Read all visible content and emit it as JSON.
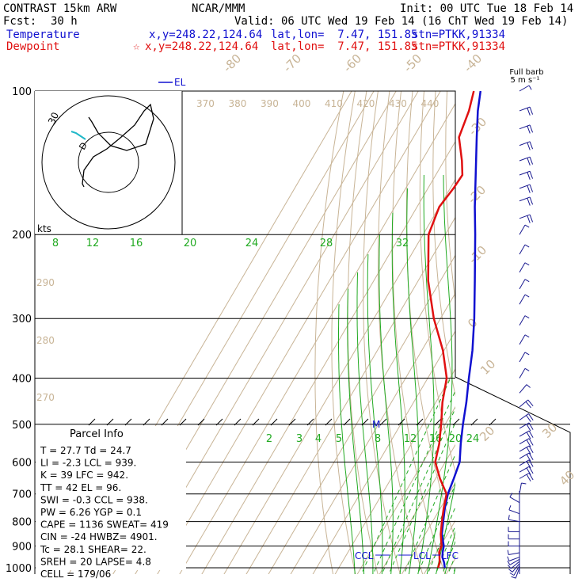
{
  "header": {
    "model": "CONTRAST 15km ARW",
    "center": "NCAR/MMM",
    "init": "Init: 00 UTC Tue 18 Feb 14",
    "fcst_label": "Fcst:",
    "fcst_value": "30 h",
    "valid": "Valid: 06 UTC Wed 19 Feb 14 (16 ChT Wed 19 Feb 14)",
    "temp_label": "Temperature",
    "temp_xy": "x,y=248.22,124.64",
    "temp_latlon": "lat,lon=  7.47, 151.85",
    "temp_stn": "stn=PTKK,91334",
    "dew_label": "Dewpoint",
    "dew_star": "☆",
    "dew_xy": "x,y=248.22,124.64",
    "dew_latlon": "lat,lon=  7.47, 151.85",
    "dew_stn": "stn=PTKK,91334"
  },
  "colors": {
    "temperature": "#1010d0",
    "dewpoint": "#e01010",
    "isotherm": "#c8b496",
    "mixing_ratio": "#22aa22",
    "wind": "#1a1a90"
  },
  "barb_legend": [
    "Full barb",
    "5 m s⁻¹"
  ],
  "hodograph": {
    "kts_label": "kts",
    "ring_label": "30"
  },
  "parcel_info": {
    "title": "Parcel Info",
    "rows": [
      "T   =   27.7  Td =  24.7",
      "LI  =   -2.3  LCL =  939.",
      "K   =     39  LFC =  942.",
      "TT  =     42  EL  =   96.",
      "SWI =   -0.3  CCL =  938.",
      "PW  =   6.26  YGP =   0.1",
      "CAPE =  1136  SWEAT=  419",
      "CIN =    -24  HWBZ= 4901.",
      "Tc  =   28.1  SHEAR=  22.",
      "SREH =    20  LAPSE=  4.8",
      "CELL = 179/06"
    ]
  },
  "levels_labels": {
    "el": "EL",
    "m": "M",
    "ccl": "CCL",
    "lcl": "LCL",
    "lfc": "LFC"
  },
  "chart_data": {
    "type": "line",
    "diagram": "skew-T log-p",
    "ylabel": "",
    "pressure_ticks": [
      100,
      200,
      300,
      400,
      500,
      600,
      700,
      800,
      900,
      1000
    ],
    "isotherm_labels": [
      "-80",
      "-70",
      "-60",
      "-50",
      "-40",
      "-30",
      "-20",
      "-10",
      "0",
      "10",
      "20",
      "30",
      "40"
    ],
    "theta_labels_top": [
      "370",
      "380",
      "390",
      "400",
      "410",
      "420",
      "430",
      "440"
    ],
    "theta_labels_left": [
      "290",
      "280",
      "270"
    ],
    "mixing_ratio_labels_upper": [
      "8",
      "12",
      "16",
      "20",
      "24",
      "28",
      "32"
    ],
    "mixing_ratio_labels_lower": [
      "2",
      "3",
      "4",
      "5",
      "8",
      "12",
      "16",
      "20",
      "24"
    ],
    "series": [
      {
        "name": "Temperature",
        "points": [
          [
            1000,
            27.7
          ],
          [
            975,
            26.0
          ],
          [
            950,
            23.8
          ],
          [
            925,
            22.5
          ],
          [
            900,
            21.5
          ],
          [
            850,
            17.5
          ],
          [
            800,
            14.8
          ],
          [
            750,
            12.0
          ],
          [
            700,
            9.6
          ],
          [
            650,
            8.2
          ],
          [
            600,
            6.5
          ],
          [
            550,
            2.2
          ],
          [
            500,
            -2.0
          ],
          [
            450,
            -6.2
          ],
          [
            400,
            -11.5
          ],
          [
            350,
            -17.2
          ],
          [
            300,
            -24.8
          ],
          [
            250,
            -34.5
          ],
          [
            200,
            -46.5
          ],
          [
            175,
            -54.0
          ],
          [
            150,
            -62.0
          ],
          [
            125,
            -71.5
          ],
          [
            110,
            -78.0
          ],
          [
            100,
            -82.0
          ]
        ]
      },
      {
        "name": "Dewpoint",
        "points": [
          [
            1000,
            24.7
          ],
          [
            975,
            24.0
          ],
          [
            950,
            22.5
          ],
          [
            925,
            21.0
          ],
          [
            900,
            20.5
          ],
          [
            850,
            17.0
          ],
          [
            800,
            14.2
          ],
          [
            750,
            11.5
          ],
          [
            700,
            9.0
          ],
          [
            650,
            2.0
          ],
          [
            600,
            -4.5
          ],
          [
            550,
            -7.5
          ],
          [
            500,
            -11.8
          ],
          [
            450,
            -17.0
          ],
          [
            400,
            -21.5
          ],
          [
            350,
            -30.5
          ],
          [
            300,
            -43.0
          ],
          [
            250,
            -55.5
          ],
          [
            200,
            -67.5
          ],
          [
            175,
            -70.0
          ],
          [
            160,
            -68.5
          ],
          [
            150,
            -68.0
          ],
          [
            140,
            -72.0
          ],
          [
            125,
            -79.5
          ],
          [
            110,
            -82.0
          ],
          [
            100,
            -85.0
          ]
        ]
      }
    ],
    "wind_barbs": [
      {
        "p": 1000,
        "dir": 200,
        "spd": 5
      },
      {
        "p": 990,
        "dir": 210,
        "spd": 5
      },
      {
        "p": 980,
        "dir": 220,
        "spd": 5
      },
      {
        "p": 970,
        "dir": 230,
        "spd": 5
      },
      {
        "p": 960,
        "dir": 240,
        "spd": 5
      },
      {
        "p": 950,
        "dir": 250,
        "spd": 5
      },
      {
        "p": 930,
        "dir": 260,
        "spd": 5
      },
      {
        "p": 900,
        "dir": 270,
        "spd": 5
      },
      {
        "p": 870,
        "dir": 270,
        "spd": 5
      },
      {
        "p": 840,
        "dir": 270,
        "spd": 5
      },
      {
        "p": 800,
        "dir": 280,
        "spd": 5
      },
      {
        "p": 770,
        "dir": 290,
        "spd": 5
      },
      {
        "p": 730,
        "dir": 300,
        "spd": 5
      },
      {
        "p": 700,
        "dir": 10,
        "spd": 3
      },
      {
        "p": 650,
        "dir": 60,
        "spd": 10
      },
      {
        "p": 630,
        "dir": 60,
        "spd": 10
      },
      {
        "p": 610,
        "dir": 60,
        "spd": 10
      },
      {
        "p": 590,
        "dir": 60,
        "spd": 10
      },
      {
        "p": 570,
        "dir": 60,
        "spd": 10
      },
      {
        "p": 550,
        "dir": 60,
        "spd": 10
      },
      {
        "p": 530,
        "dir": 60,
        "spd": 10
      },
      {
        "p": 510,
        "dir": 60,
        "spd": 10
      },
      {
        "p": 490,
        "dir": 55,
        "spd": 10
      },
      {
        "p": 460,
        "dir": 50,
        "spd": 10
      },
      {
        "p": 430,
        "dir": 40,
        "spd": 5
      },
      {
        "p": 400,
        "dir": 30,
        "spd": 5
      },
      {
        "p": 370,
        "dir": 30,
        "spd": 5
      },
      {
        "p": 340,
        "dir": 30,
        "spd": 5
      },
      {
        "p": 310,
        "dir": 30,
        "spd": 5
      },
      {
        "p": 280,
        "dir": 30,
        "spd": 5
      },
      {
        "p": 260,
        "dir": 30,
        "spd": 5
      },
      {
        "p": 240,
        "dir": 30,
        "spd": 5
      },
      {
        "p": 220,
        "dir": 30,
        "spd": 5
      },
      {
        "p": 200,
        "dir": 30,
        "spd": 5
      },
      {
        "p": 185,
        "dir": 70,
        "spd": 10
      },
      {
        "p": 170,
        "dir": 70,
        "spd": 10
      },
      {
        "p": 160,
        "dir": 70,
        "spd": 10
      },
      {
        "p": 150,
        "dir": 70,
        "spd": 10
      },
      {
        "p": 140,
        "dir": 70,
        "spd": 10
      },
      {
        "p": 130,
        "dir": 70,
        "spd": 10
      },
      {
        "p": 120,
        "dir": 70,
        "spd": 10
      },
      {
        "p": 110,
        "dir": 70,
        "spd": 10
      },
      {
        "p": 100,
        "dir": 60,
        "spd": 5
      }
    ],
    "hodograph_points": [
      [
        -0.05,
        0.05
      ],
      [
        -0.22,
        0.12
      ],
      [
        -0.33,
        0.18
      ],
      [
        -0.38,
        0.24
      ],
      [
        -0.42,
        0.33
      ],
      [
        -0.45,
        0.42
      ],
      [
        -0.48,
        0.46
      ],
      [
        -0.4,
        0.48
      ],
      [
        -0.2,
        0.46
      ],
      [
        0.05,
        0.4
      ],
      [
        0.25,
        0.28
      ],
      [
        0.45,
        0.12
      ],
      [
        0.65,
        0.0
      ],
      [
        0.7,
        -0.25
      ],
      [
        0.55,
        -0.05
      ],
      [
        0.3,
        0.05
      ],
      [
        0.05,
        0.05
      ]
    ]
  }
}
